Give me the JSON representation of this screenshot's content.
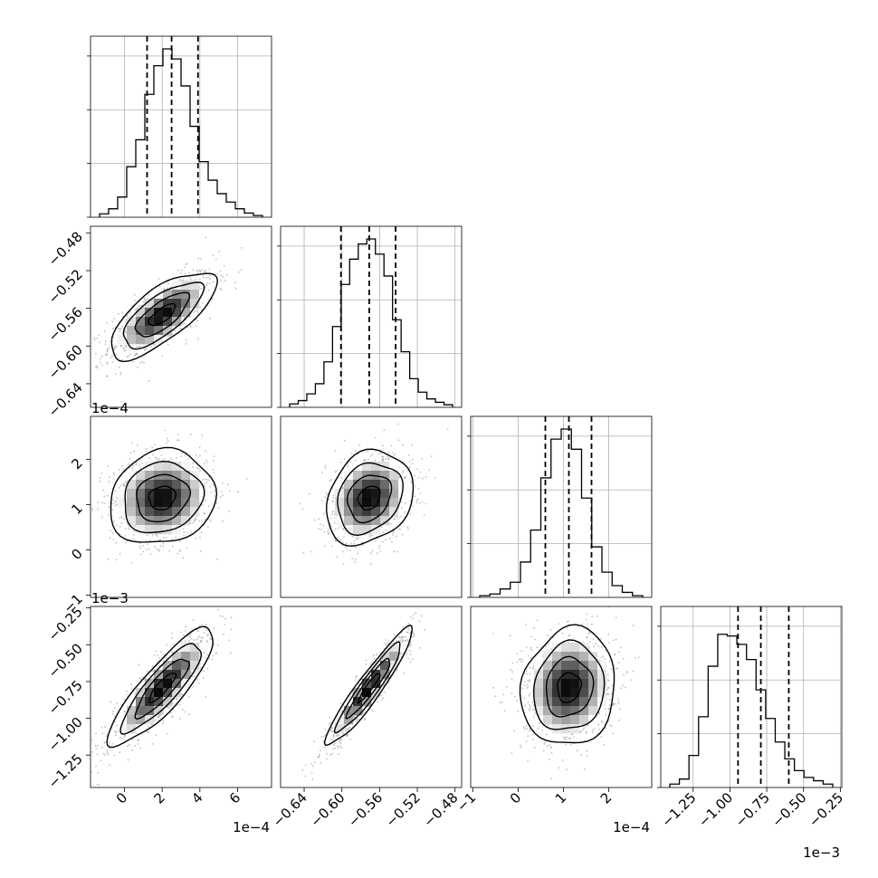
{
  "chart_data": {
    "type": "corner",
    "parameters": [
      {
        "ticks": [
          0,
          2,
          4,
          6
        ],
        "tick_labels": [
          "0",
          "2",
          "4",
          "6"
        ],
        "range": [
          -1.8,
          7.8
        ],
        "exponent_label": "1e−4",
        "quantiles": [
          1.2,
          2.5,
          3.9
        ]
      },
      {
        "ticks": [
          -0.64,
          -0.6,
          -0.56,
          -0.52,
          -0.48
        ],
        "tick_labels": [
          "−0.64",
          "−0.60",
          "−0.56",
          "−0.52",
          "−0.48"
        ],
        "range": [
          -0.665,
          -0.473
        ],
        "exponent_label": "",
        "quantiles": [
          -0.601,
          -0.571,
          -0.543
        ]
      },
      {
        "ticks": [
          -1,
          0,
          1,
          2
        ],
        "tick_labels": [
          "−1",
          "0",
          "1",
          "2"
        ],
        "range": [
          -1.05,
          2.95
        ],
        "exponent_label": "1e−4",
        "quantiles": [
          0.6,
          1.12,
          1.62
        ]
      },
      {
        "ticks": [
          -1.25,
          -1.0,
          -0.75,
          -0.5,
          -0.25
        ],
        "tick_labels": [
          "−1.25",
          "−1.00",
          "−0.75",
          "−0.50",
          "−0.25"
        ],
        "range": [
          -1.47,
          -0.24
        ],
        "exponent_label": "1e−3",
        "quantiles": [
          -0.945,
          -0.79,
          -0.6
        ]
      }
    ],
    "histograms": [
      [
        0.02,
        0.05,
        0.12,
        0.3,
        0.46,
        0.73,
        0.9,
        1.0,
        0.94,
        0.78,
        0.54,
        0.33,
        0.22,
        0.14,
        0.09,
        0.05,
        0.025,
        0.01
      ],
      [
        0.02,
        0.04,
        0.08,
        0.14,
        0.27,
        0.48,
        0.73,
        0.88,
        0.97,
        1.0,
        0.91,
        0.78,
        0.52,
        0.33,
        0.17,
        0.09,
        0.05,
        0.03,
        0.015
      ],
      [
        0.01,
        0.02,
        0.05,
        0.09,
        0.21,
        0.4,
        0.71,
        0.94,
        1.0,
        0.88,
        0.59,
        0.3,
        0.15,
        0.07,
        0.03,
        0.01
      ],
      [
        0.02,
        0.05,
        0.19,
        0.42,
        0.72,
        0.91,
        0.9,
        0.85,
        0.76,
        0.58,
        0.41,
        0.27,
        0.17,
        0.1,
        0.06,
        0.04,
        0.02
      ]
    ],
    "pairs": [
      {
        "row": 1,
        "col": 0,
        "center": [
          2.0,
          -0.567
        ],
        "sigma": [
          1.4,
          0.023
        ],
        "corr": 0.72
      },
      {
        "row": 2,
        "col": 0,
        "center": [
          2.0,
          1.15
        ],
        "sigma": [
          1.4,
          0.52
        ],
        "corr": 0.12
      },
      {
        "row": 2,
        "col": 1,
        "center": [
          -0.571,
          1.15
        ],
        "sigma": [
          0.023,
          0.52
        ],
        "corr": 0.22
      },
      {
        "row": 3,
        "col": 0,
        "center": [
          2.0,
          -0.79
        ],
        "sigma": [
          1.4,
          0.2
        ],
        "corr": 0.86
      },
      {
        "row": 3,
        "col": 1,
        "center": [
          -0.571,
          -0.79
        ],
        "sigma": [
          0.023,
          0.2
        ],
        "corr": 0.94
      },
      {
        "row": 3,
        "col": 2,
        "center": [
          1.12,
          -0.79
        ],
        "sigma": [
          0.52,
          0.2
        ],
        "corr": 0.1
      }
    ],
    "grid": true,
    "levels": 4,
    "quantile_lines": "dashed"
  }
}
